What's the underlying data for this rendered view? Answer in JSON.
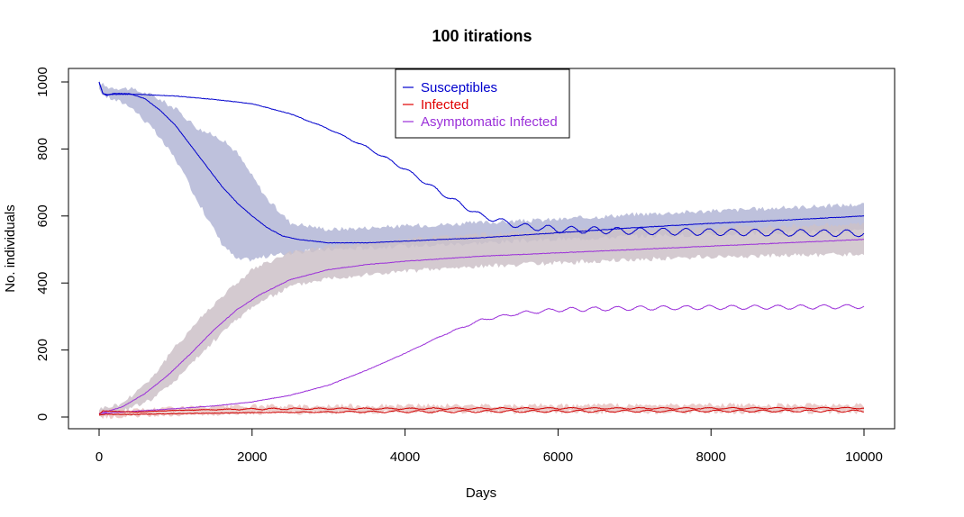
{
  "chart_data": {
    "type": "line",
    "title": "100  itirations",
    "xlabel": "Days",
    "ylabel": "No. individuals",
    "xlim": [
      0,
      10000
    ],
    "ylim": [
      0,
      1000
    ],
    "x_ticks": [
      "0",
      "2000",
      "4000",
      "6000",
      "8000",
      "10000"
    ],
    "y_ticks": [
      "0",
      "200",
      "400",
      "600",
      "800",
      "1000"
    ],
    "grid": false,
    "legend_position": "top-center",
    "legend": [
      {
        "name": "Susceptibles",
        "color": "#0000CD"
      },
      {
        "name": "Infected",
        "color": "#E00000"
      },
      {
        "name": "Asymptomatic Infected",
        "color": "#9B30D9"
      }
    ],
    "bands": [
      {
        "series": "Susceptibles",
        "color": "#B3B6D6",
        "x": [
          0,
          100,
          400,
          700,
          1000,
          1300,
          1600,
          1800,
          2000,
          2200,
          2500,
          3000,
          4000,
          5000,
          6000,
          7000,
          8000,
          9000,
          10000
        ],
        "upper": [
          1000,
          985,
          980,
          960,
          920,
          860,
          830,
          790,
          720,
          650,
          580,
          560,
          570,
          580,
          590,
          605,
          615,
          625,
          635
        ],
        "lower": [
          975,
          955,
          930,
          860,
          770,
          640,
          520,
          470,
          470,
          480,
          490,
          500,
          510,
          520,
          530,
          540,
          545,
          550,
          555
        ]
      },
      {
        "series": "Asymptomatic Infected",
        "color": "#CDC1C8",
        "x": [
          0,
          300,
          700,
          1000,
          1300,
          1600,
          2000,
          2500,
          3000,
          4000,
          5000,
          6000,
          7000,
          8000,
          9000,
          10000
        ],
        "upper": [
          25,
          40,
          120,
          210,
          290,
          360,
          440,
          490,
          510,
          530,
          545,
          555,
          560,
          565,
          570,
          575
        ],
        "lower": [
          5,
          15,
          55,
          110,
          180,
          250,
          330,
          390,
          415,
          435,
          450,
          460,
          470,
          478,
          482,
          486
        ]
      },
      {
        "series": "Infected",
        "color": "#E9C2C0",
        "x": [
          0,
          500,
          1000,
          2000,
          4000,
          6000,
          8000,
          10000
        ],
        "upper": [
          20,
          22,
          28,
          32,
          34,
          35,
          36,
          36
        ],
        "lower": [
          0,
          2,
          8,
          12,
          14,
          15,
          15,
          15
        ]
      }
    ],
    "series": [
      {
        "name": "Susceptibles",
        "color": "#0000CD",
        "x": [
          0,
          50,
          100,
          200,
          400,
          600,
          800,
          1000,
          1200,
          1400,
          1600,
          1800,
          2000,
          2200,
          2400,
          2600,
          2800,
          3000,
          3500,
          4000,
          5000,
          6000,
          7000,
          8000,
          9000,
          10000
        ],
        "values": [
          1000,
          965,
          960,
          966,
          965,
          950,
          915,
          870,
          810,
          750,
          690,
          640,
          600,
          565,
          540,
          530,
          525,
          520,
          520,
          525,
          535,
          550,
          565,
          578,
          588,
          600
        ]
      },
      {
        "name": "Susceptibles",
        "color": "#0000CD",
        "oscillation": {
          "amplitude": 10,
          "period": 300,
          "start": 2500,
          "grow_until": 6000
        },
        "x": [
          0,
          50,
          100,
          500,
          1000,
          1500,
          2000,
          2500,
          3000,
          3500,
          4000,
          4500,
          5000,
          5500,
          6000,
          7000,
          8000,
          9000,
          10000
        ],
        "values": [
          1000,
          965,
          963,
          963,
          958,
          948,
          935,
          905,
          860,
          805,
          740,
          665,
          600,
          570,
          560,
          555,
          552,
          550,
          548
        ]
      },
      {
        "name": "Asymptomatic Infected",
        "color": "#9B30D9",
        "x": [
          0,
          300,
          600,
          900,
          1200,
          1500,
          1800,
          2100,
          2500,
          3000,
          3500,
          4000,
          5000,
          6000,
          7000,
          8000,
          9000,
          10000
        ],
        "values": [
          10,
          30,
          70,
          125,
          190,
          260,
          320,
          365,
          410,
          440,
          455,
          465,
          480,
          490,
          500,
          510,
          520,
          530
        ]
      },
      {
        "name": "Asymptomatic Infected",
        "color": "#9B30D9",
        "oscillation": {
          "amplitude": 6,
          "period": 300,
          "start": 4000,
          "grow_until": 6000
        },
        "x": [
          0,
          500,
          1000,
          1500,
          2000,
          2500,
          3000,
          3500,
          4000,
          4500,
          5000,
          5500,
          6000,
          7000,
          8000,
          9000,
          10000
        ],
        "values": [
          10,
          18,
          25,
          33,
          45,
          65,
          95,
          140,
          190,
          245,
          290,
          310,
          320,
          325,
          327,
          328,
          330
        ]
      },
      {
        "name": "Infected",
        "color": "#D00000",
        "oscillation": {
          "amplitude": 2,
          "period": 300,
          "start": 1000,
          "grow_until": 2000
        },
        "x": [
          0,
          50,
          500,
          1000,
          2000,
          3000,
          4000,
          6000,
          8000,
          10000
        ],
        "values": [
          8,
          18,
          15,
          20,
          24,
          25,
          25,
          26,
          26,
          27
        ]
      },
      {
        "name": "Infected",
        "color": "#D00000",
        "oscillation": {
          "amplitude": 3,
          "period": 300,
          "start": 2000,
          "grow_until": 4000
        },
        "x": [
          0,
          50,
          500,
          1000,
          2000,
          3000,
          4000,
          6000,
          8000,
          10000
        ],
        "values": [
          5,
          8,
          8,
          10,
          13,
          15,
          16,
          17,
          18,
          18
        ]
      }
    ]
  }
}
